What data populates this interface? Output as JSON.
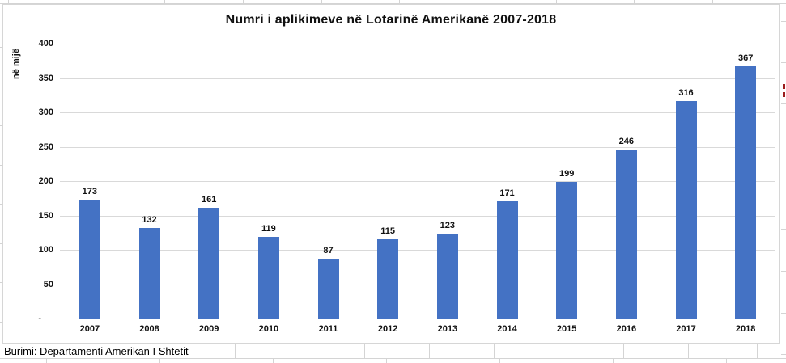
{
  "chart": {
    "title": "Numri i aplikimeve në Lotarinë Amerikanë 2007-2018",
    "y_axis_label": "në mijë",
    "source_note": "Burimi: Departamenti Amerikan I Shtetit"
  },
  "chart_data": {
    "type": "bar",
    "title": "Numri i aplikimeve në Lotarinë Amerikanë 2007-2018",
    "xlabel": "",
    "ylabel": "në mijë",
    "categories": [
      "2007",
      "2008",
      "2009",
      "2010",
      "2011",
      "2012",
      "2013",
      "2014",
      "2015",
      "2016",
      "2017",
      "2018"
    ],
    "values": [
      173,
      132,
      161,
      119,
      87,
      115,
      123,
      171,
      199,
      246,
      316,
      367
    ],
    "ylim": [
      0,
      400
    ],
    "yticks": [
      0,
      50,
      100,
      150,
      200,
      250,
      300,
      350,
      400
    ],
    "ytick_labels": [
      "-",
      "50",
      "100",
      "150",
      "200",
      "250",
      "300",
      "350",
      "400"
    ],
    "grid": true,
    "legend": false,
    "data_labels": true,
    "bar_color": "#4472C4"
  },
  "colors": {
    "bar": "#4472C4",
    "gridline": "#d9d9d9",
    "axis_line": "#bfbfbf",
    "chart_border": "#d6d6d6",
    "sheet_gridline": "#d4d4d4",
    "annotation_mark": "#9b1c1c"
  }
}
